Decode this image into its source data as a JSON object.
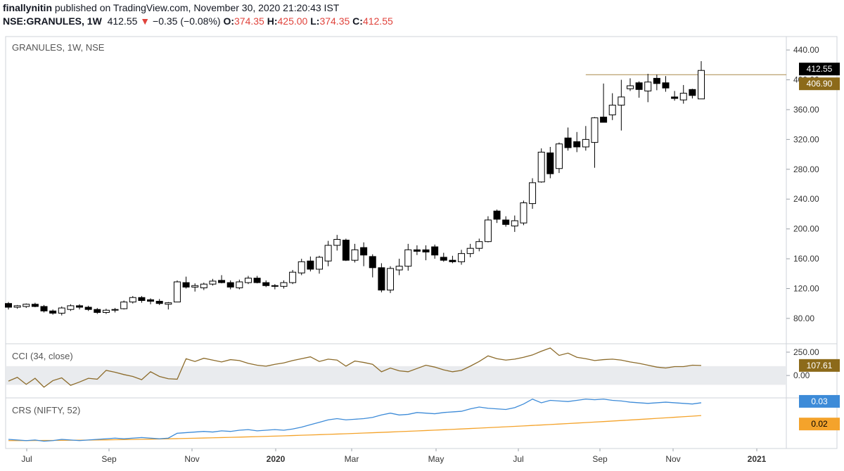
{
  "header": {
    "author": "finallynitin",
    "published_text": "published on TradingView.com, November 30, 2020 21:20:43 IST",
    "symbol": "NSE:GRANULES, 1W",
    "last": "412.55",
    "change_arrow": "▼",
    "change": "−0.35 (−0.08%)",
    "o_label": "O:",
    "o_value": "374.35",
    "h_label": "H:",
    "h_value": "425.00",
    "l_label": "L:",
    "l_value": "374.35",
    "c_label": "C:",
    "c_value": "412.55"
  },
  "colors": {
    "up_fill": "#ffffff",
    "down_fill": "#000000",
    "cci_line": "#8c6b2a",
    "cci_band": "#e9ebee",
    "crs_line": "#3d8bd8",
    "crs_ma": "#f4a32b",
    "ref_line": "#a98a4a",
    "last_tag": "#000000",
    "ref_tag": "#8c6a1a"
  },
  "chart_data": {
    "type": "candlestick",
    "title": "GRANULES, 1W, NSE",
    "price_axis": {
      "range": [
        46,
        458
      ],
      "ticks": [
        "440.00",
        "400.00",
        "360.00",
        "320.00",
        "280.00",
        "240.00",
        "200.00",
        "160.00",
        "120.00",
        "80.00"
      ],
      "last_label": "412.55",
      "ref_label": "406.90",
      "ref_value": 406.9
    },
    "x_axis": {
      "ticks": [
        "Jul",
        "Sep",
        "Nov",
        "2020",
        "Mar",
        "May",
        "Jul",
        "Sep",
        "Nov",
        "2021"
      ]
    },
    "candles": [
      [
        100,
        102,
        92,
        95
      ],
      [
        95,
        98,
        93,
        97
      ],
      [
        96,
        100,
        94,
        99
      ],
      [
        99,
        101,
        95,
        96
      ],
      [
        96,
        98,
        88,
        90
      ],
      [
        90,
        92,
        85,
        87
      ],
      [
        87,
        96,
        84,
        94
      ],
      [
        92,
        99,
        90,
        97
      ],
      [
        97,
        99,
        92,
        95
      ],
      [
        95,
        97,
        90,
        92
      ],
      [
        92,
        94,
        86,
        88
      ],
      [
        88,
        93,
        86,
        91
      ],
      [
        91,
        94,
        88,
        92
      ],
      [
        93,
        104,
        92,
        102
      ],
      [
        102,
        110,
        100,
        108
      ],
      [
        108,
        110,
        101,
        104
      ],
      [
        105,
        107,
        99,
        103
      ],
      [
        103,
        106,
        98,
        100
      ],
      [
        99,
        102,
        92,
        101
      ],
      [
        102,
        131,
        102,
        129
      ],
      [
        128,
        136,
        120,
        122
      ],
      [
        122,
        127,
        116,
        124
      ],
      [
        121,
        128,
        118,
        126
      ],
      [
        126,
        133,
        124,
        130
      ],
      [
        131,
        138,
        127,
        128
      ],
      [
        128,
        131,
        119,
        122
      ],
      [
        121,
        132,
        119,
        129
      ],
      [
        128,
        137,
        126,
        134
      ],
      [
        134,
        137,
        127,
        128
      ],
      [
        128,
        131,
        122,
        124
      ],
      [
        124,
        126,
        119,
        123
      ],
      [
        123,
        131,
        120,
        128
      ],
      [
        128,
        145,
        126,
        142
      ],
      [
        141,
        160,
        138,
        156
      ],
      [
        157,
        163,
        143,
        146
      ],
      [
        146,
        164,
        140,
        162
      ],
      [
        157,
        184,
        150,
        178
      ],
      [
        178,
        192,
        171,
        186
      ],
      [
        185,
        187,
        157,
        158
      ],
      [
        158,
        180,
        155,
        172
      ],
      [
        175,
        182,
        150,
        165
      ],
      [
        163,
        166,
        135,
        148
      ],
      [
        148,
        154,
        115,
        118
      ],
      [
        118,
        150,
        114,
        147
      ],
      [
        145,
        160,
        138,
        150
      ],
      [
        150,
        180,
        144,
        172
      ],
      [
        172,
        178,
        165,
        170
      ],
      [
        172,
        178,
        158,
        169
      ],
      [
        176,
        179,
        160,
        165
      ],
      [
        162,
        168,
        156,
        158
      ],
      [
        158,
        164,
        154,
        156
      ],
      [
        156,
        172,
        152,
        167
      ],
      [
        167,
        180,
        162,
        174
      ],
      [
        174,
        187,
        170,
        183
      ],
      [
        183,
        217,
        182,
        212
      ],
      [
        224,
        226,
        208,
        213
      ],
      [
        212,
        217,
        203,
        206
      ],
      [
        204,
        218,
        196,
        211
      ],
      [
        208,
        238,
        205,
        235
      ],
      [
        234,
        268,
        227,
        262
      ],
      [
        263,
        308,
        262,
        303
      ],
      [
        302,
        310,
        268,
        274
      ],
      [
        281,
        316,
        275,
        314
      ],
      [
        322,
        336,
        305,
        309
      ],
      [
        317,
        330,
        303,
        310
      ],
      [
        310,
        338,
        305,
        320
      ],
      [
        316,
        350,
        282,
        349
      ],
      [
        350,
        395,
        346,
        343
      ],
      [
        353,
        382,
        346,
        366
      ],
      [
        366,
        400,
        332,
        377
      ],
      [
        388,
        402,
        385,
        392
      ],
      [
        396,
        398,
        376,
        387
      ],
      [
        385,
        408,
        370,
        397
      ],
      [
        402,
        407,
        386,
        395
      ],
      [
        396,
        405,
        384,
        389
      ],
      [
        377,
        385,
        372,
        375
      ],
      [
        373,
        393,
        368,
        382
      ],
      [
        387,
        388,
        375,
        379
      ],
      [
        374.35,
        425,
        374.35,
        412.55
      ]
    ]
  },
  "cci_panel": {
    "title": "CCI (34, close)",
    "ticks": [
      "250.00",
      "0.00"
    ],
    "last_label": "107.61",
    "band": [
      -100,
      100
    ],
    "range": [
      -240,
      340
    ],
    "values": [
      -60,
      -20,
      -95,
      -30,
      -125,
      -55,
      -25,
      -105,
      -70,
      -30,
      -40,
      55,
      35,
      10,
      -10,
      -45,
      40,
      -10,
      -35,
      -40,
      180,
      150,
      185,
      165,
      145,
      170,
      160,
      130,
      110,
      100,
      120,
      135,
      160,
      180,
      200,
      150,
      175,
      165,
      100,
      155,
      140,
      120,
      40,
      80,
      50,
      40,
      75,
      110,
      90,
      60,
      40,
      55,
      100,
      150,
      210,
      180,
      165,
      175,
      195,
      220,
      260,
      295,
      215,
      240,
      195,
      180,
      160,
      170,
      175,
      165,
      145,
      130,
      110,
      90,
      80,
      95,
      95,
      110,
      107.61
    ]
  },
  "crs_panel": {
    "title": "CRS (NIFTY, 52)",
    "last_label": "0.03",
    "ma_label": "0.02",
    "range": [
      -0.045,
      0.038
    ],
    "values": [
      -0.03,
      -0.031,
      -0.032,
      -0.031,
      -0.033,
      -0.032,
      -0.03,
      -0.031,
      -0.032,
      -0.031,
      -0.03,
      -0.029,
      -0.028,
      -0.029,
      -0.028,
      -0.027,
      -0.028,
      -0.029,
      -0.028,
      -0.02,
      -0.019,
      -0.018,
      -0.017,
      -0.018,
      -0.016,
      -0.017,
      -0.015,
      -0.014,
      -0.016,
      -0.015,
      -0.014,
      -0.015,
      -0.013,
      -0.01,
      -0.006,
      -0.002,
      0.002,
      0.004,
      0.002,
      0.003,
      0.004,
      0.006,
      0.01,
      0.013,
      0.01,
      0.011,
      0.014,
      0.013,
      0.012,
      0.014,
      0.015,
      0.016,
      0.02,
      0.023,
      0.021,
      0.02,
      0.019,
      0.022,
      0.028,
      0.036,
      0.03,
      0.034,
      0.033,
      0.032,
      0.034,
      0.036,
      0.035,
      0.036,
      0.034,
      0.033,
      0.031,
      0.03,
      0.029,
      0.03,
      0.031,
      0.03,
      0.029,
      0.028,
      0.03
    ],
    "ma_values": [
      -0.032,
      0.009
    ]
  }
}
